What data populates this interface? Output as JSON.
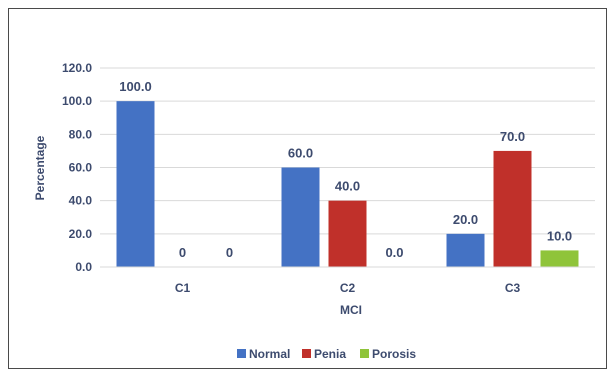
{
  "chart_data": {
    "type": "bar",
    "title": "",
    "xlabel": "MCI",
    "ylabel": "Percentage",
    "ylim": [
      0,
      120
    ],
    "yticks": [
      "0.0",
      "20.0",
      "40.0",
      "60.0",
      "80.0",
      "100.0",
      "120.0"
    ],
    "categories": [
      "C1",
      "C2",
      "C3"
    ],
    "series": [
      {
        "name": "Normal",
        "color": "#4472c4",
        "values": [
          100,
          60,
          20
        ],
        "labels": [
          "100.0",
          "60.0",
          "20.0"
        ]
      },
      {
        "name": "Penia",
        "color": "#c0302a",
        "values": [
          0,
          40,
          70
        ],
        "labels": [
          "0",
          "40.0",
          "70.0"
        ]
      },
      {
        "name": "Porosis",
        "color": "#8fc43a",
        "values": [
          0,
          0,
          10
        ],
        "labels": [
          "0",
          "0.0",
          "10.0"
        ]
      }
    ],
    "grid": true,
    "legend": "bottom"
  }
}
